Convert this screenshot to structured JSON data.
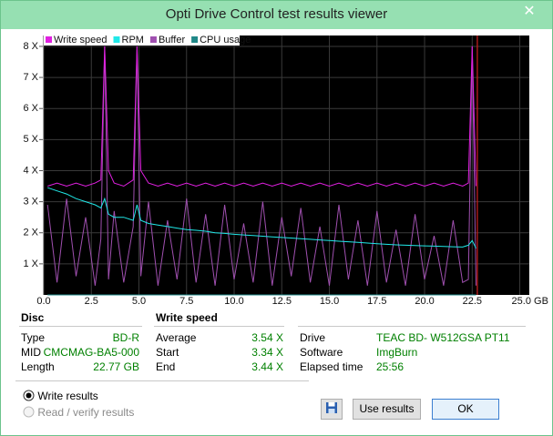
{
  "window": {
    "title": "Opti Drive Control test results viewer"
  },
  "chart_data": {
    "type": "line",
    "x": [
      0.2,
      0.7,
      1.2,
      1.7,
      2.2,
      2.7,
      3.0,
      3.2,
      3.4,
      3.7,
      4.2,
      4.7,
      4.9,
      5.1,
      5.5,
      6,
      6.5,
      7,
      7.5,
      8,
      8.5,
      9,
      9.5,
      10,
      10.5,
      11,
      11.5,
      12,
      12.5,
      13,
      13.5,
      14,
      14.5,
      15,
      15.5,
      16,
      16.5,
      17,
      17.5,
      18,
      18.5,
      19,
      19.5,
      20,
      20.5,
      21,
      21.5,
      22,
      22.3,
      22.5,
      22.7
    ],
    "series": [
      {
        "name": "Write speed",
        "color": "#e020e0",
        "values": [
          3.5,
          3.6,
          3.5,
          3.6,
          3.5,
          3.6,
          3.7,
          8.0,
          4.0,
          3.6,
          3.5,
          3.7,
          8.0,
          4.0,
          3.6,
          3.5,
          3.6,
          3.5,
          3.6,
          3.5,
          3.6,
          3.5,
          3.6,
          3.5,
          3.6,
          3.5,
          3.6,
          3.5,
          3.6,
          3.5,
          3.6,
          3.5,
          3.6,
          3.5,
          3.6,
          3.5,
          3.6,
          3.5,
          3.6,
          3.5,
          3.6,
          3.5,
          3.6,
          3.5,
          3.6,
          3.5,
          3.6,
          3.5,
          3.6,
          8.0,
          3.5
        ]
      },
      {
        "name": "RPM",
        "color": "#20e8e8",
        "values": [
          3.45,
          3.35,
          3.25,
          3.1,
          3.0,
          2.9,
          2.8,
          3.1,
          2.6,
          2.5,
          2.5,
          2.4,
          2.9,
          2.4,
          2.3,
          2.25,
          2.2,
          2.15,
          2.1,
          2.08,
          2.05,
          2.0,
          1.98,
          1.95,
          1.93,
          1.91,
          1.89,
          1.87,
          1.85,
          1.83,
          1.81,
          1.79,
          1.77,
          1.75,
          1.73,
          1.71,
          1.69,
          1.67,
          1.65,
          1.63,
          1.61,
          1.6,
          1.59,
          1.58,
          1.57,
          1.56,
          1.55,
          1.54,
          1.6,
          1.75,
          1.5
        ]
      },
      {
        "name": "Buffer",
        "color": "#a050b0",
        "values": [
          2.9,
          0.4,
          3.1,
          0.6,
          2.5,
          0.3,
          1.8,
          8.0,
          0.5,
          2.7,
          0.4,
          2.2,
          8.0,
          0.6,
          3.0,
          0.3,
          2.4,
          0.5,
          3.1,
          0.4,
          2.6,
          0.3,
          2.9,
          0.5,
          2.3,
          0.4,
          3.0,
          0.3,
          2.5,
          0.6,
          2.8,
          0.4,
          2.2,
          0.3,
          2.9,
          0.5,
          2.4,
          0.3,
          2.7,
          0.4,
          2.1,
          0.3,
          2.6,
          0.5,
          1.9,
          0.3,
          2.4,
          0.4,
          0.5,
          8.0,
          0.3
        ]
      },
      {
        "name": "CPU usage",
        "color": "#208888",
        "values": [
          0,
          0,
          0,
          0,
          0,
          0,
          0,
          0,
          0,
          0,
          0,
          0,
          0,
          0,
          0,
          0,
          0,
          0,
          0,
          0,
          0,
          0,
          0,
          0,
          0,
          0,
          0,
          0,
          0,
          0,
          0,
          0,
          0,
          0,
          0,
          0,
          0,
          0,
          0,
          0,
          0,
          0,
          0,
          0,
          0,
          0,
          0,
          0,
          0,
          0,
          0
        ]
      }
    ],
    "marker_x": 22.77,
    "marker_color": "#d02020",
    "xlim": [
      0,
      25.5
    ],
    "ylim": [
      0,
      8.35
    ],
    "xticks": [
      {
        "value": 0,
        "label": "0.0"
      },
      2.5,
      {
        "value": 5,
        "label": "5.0"
      },
      7.5,
      {
        "value": 10,
        "label": "10.0"
      },
      12.5,
      {
        "value": 15,
        "label": "15.0"
      },
      17.5,
      {
        "value": 20,
        "label": "20.0"
      },
      22.5,
      {
        "value": 25,
        "label": "25.0 GB"
      }
    ],
    "yticks": [
      {
        "value": 1,
        "label": "1 X"
      },
      {
        "value": 2,
        "label": "2 X"
      },
      {
        "value": 3,
        "label": "3 X"
      },
      {
        "value": 4,
        "label": "4 X"
      },
      {
        "value": 5,
        "label": "5 X"
      },
      {
        "value": 6,
        "label": "6 X"
      },
      {
        "value": 7,
        "label": "7 X"
      },
      {
        "value": 8,
        "label": "8 X"
      }
    ],
    "grid": true
  },
  "disc": {
    "title": "Disc",
    "rows": [
      {
        "label": "Type",
        "value": "BD-R"
      },
      {
        "label": "MID",
        "value": "CMCMAG-BA5-000"
      },
      {
        "label": "Length",
        "value": "22.77 GB"
      }
    ]
  },
  "write_speed": {
    "title": "Write speed",
    "rows": [
      {
        "label": "Average",
        "value": "3.54 X"
      },
      {
        "label": "Start",
        "value": "3.34 X"
      },
      {
        "label": "End",
        "value": "3.44 X"
      }
    ]
  },
  "drive_info": {
    "rows": [
      {
        "label": "Drive",
        "value": "TEAC BD- W512GSA PT11"
      },
      {
        "label": "Software",
        "value": "ImgBurn"
      },
      {
        "label": "Elapsed time",
        "value": "25:56"
      }
    ]
  },
  "options": [
    "Write results",
    "Read / verify results"
  ],
  "buttons": {
    "use": "Use results",
    "ok": "OK"
  }
}
